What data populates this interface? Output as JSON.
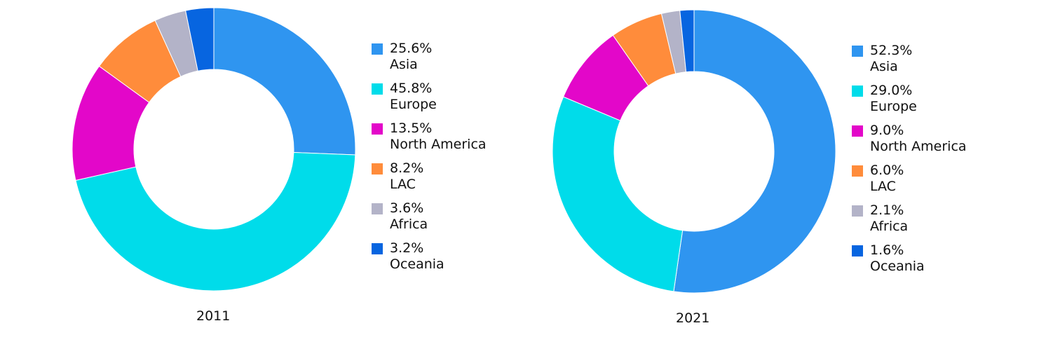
{
  "chart_data": [
    {
      "type": "pie",
      "donut": true,
      "label": "2011",
      "categories": [
        "Asia",
        "Europe",
        "North America",
        "LAC",
        "Africa",
        "Oceania"
      ],
      "values": [
        25.6,
        45.8,
        13.5,
        8.2,
        3.6,
        3.2
      ],
      "value_labels": [
        "25.6%",
        "45.8%",
        "13.5%",
        "8.2%",
        "3.6%",
        "3.2%"
      ],
      "colors": [
        "#2f95f0",
        "#00dcea",
        "#e307c9",
        "#ff8c3b",
        "#b3b3c8",
        "#0765e0"
      ],
      "legend_position": "right"
    },
    {
      "type": "pie",
      "donut": true,
      "label": "2021",
      "categories": [
        "Asia",
        "Europe",
        "North America",
        "LAC",
        "Africa",
        "Oceania"
      ],
      "values": [
        52.3,
        29.0,
        9.0,
        6.0,
        2.1,
        1.6
      ],
      "value_labels": [
        "52.3%",
        "29.0%",
        "9.0%",
        "6.0%",
        "2.1%",
        "1.6%"
      ],
      "colors": [
        "#2f95f0",
        "#00dcea",
        "#e307c9",
        "#ff8c3b",
        "#b3b3c8",
        "#0765e0"
      ],
      "legend_position": "right"
    }
  ]
}
